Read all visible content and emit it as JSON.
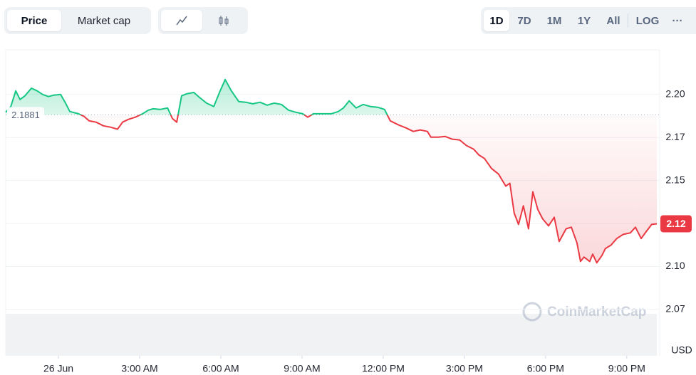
{
  "controls": {
    "tabs": [
      "Price",
      "Market cap"
    ],
    "ranges": [
      "1D",
      "7D",
      "1M",
      "1Y",
      "All"
    ],
    "log": "LOG",
    "more": "···"
  },
  "chart_data": {
    "type": "line",
    "currency": "USD",
    "watermark": "CoinMarketCap",
    "baseline": 2.1881,
    "current_price_label": "2.12",
    "colors": {
      "up": "#16c784",
      "down": "#ea3943"
    },
    "grid": true,
    "xlim": [
      -1.95,
      22.11
    ],
    "xticks": [
      {
        "value": 0,
        "label": "26 Jun"
      },
      {
        "value": 3,
        "label": "3:00 AM"
      },
      {
        "value": 6,
        "label": "6:00 AM"
      },
      {
        "value": 9,
        "label": "9:00 AM"
      },
      {
        "value": 12,
        "label": "12:00 PM"
      },
      {
        "value": 15,
        "label": "3:00 PM"
      },
      {
        "value": 18,
        "label": "6:00 PM"
      },
      {
        "value": 21,
        "label": "9:00 PM"
      }
    ],
    "ylim": [
      2.048,
      2.226
    ],
    "yticks": [
      {
        "value": 2.2,
        "label": "2.20"
      },
      {
        "value": 2.175,
        "label": "2.17"
      },
      2.15,
      {
        "value": 2.125,
        "label": "2.12"
      },
      {
        "value": 2.1,
        "label": "2.10"
      },
      {
        "value": 2.075,
        "label": "2.07"
      }
    ],
    "x": [
      -1.95,
      -1.76,
      -1.58,
      -1.42,
      -1.24,
      -1.0,
      -0.79,
      -0.58,
      -0.37,
      -0.18,
      0.08,
      0.26,
      0.42,
      0.74,
      0.95,
      1.13,
      1.39,
      1.66,
      1.92,
      2.18,
      2.37,
      2.58,
      2.84,
      3.11,
      3.32,
      3.5,
      3.76,
      4.03,
      4.21,
      4.37,
      4.55,
      4.74,
      5.0,
      5.21,
      5.47,
      5.74,
      5.95,
      6.16,
      6.39,
      6.66,
      6.92,
      7.18,
      7.45,
      7.71,
      7.97,
      8.24,
      8.5,
      8.76,
      9.03,
      9.21,
      9.42,
      9.82,
      10.08,
      10.34,
      10.53,
      10.74,
      11.0,
      11.26,
      11.53,
      11.79,
      12.05,
      12.26,
      12.58,
      12.84,
      13.11,
      13.37,
      13.63,
      13.76,
      14.03,
      14.29,
      14.55,
      14.82,
      15.08,
      15.34,
      15.53,
      15.74,
      16.0,
      16.26,
      16.53,
      16.68,
      16.84,
      17.0,
      17.18,
      17.37,
      17.53,
      17.71,
      17.89,
      18.11,
      18.32,
      18.5,
      18.76,
      18.95,
      19.16,
      19.29,
      19.42,
      19.63,
      19.74,
      19.89,
      20.08,
      20.21,
      20.42,
      20.63,
      20.87,
      21.13,
      21.32,
      21.53,
      21.74,
      21.92,
      22.11
    ],
    "values": [
      2.1897,
      2.193,
      2.2021,
      2.1971,
      2.1992,
      2.2037,
      2.2021,
      2.2,
      2.1988,
      2.1996,
      2.2,
      2.195,
      2.1901,
      2.1888,
      2.1872,
      2.1847,
      2.1839,
      2.1818,
      2.181,
      2.1798,
      2.1839,
      2.1855,
      2.1868,
      2.1888,
      2.1909,
      2.1917,
      2.1913,
      2.1922,
      2.186,
      2.1839,
      2.1992,
      2.2004,
      2.2012,
      2.1983,
      2.195,
      2.193,
      2.2012,
      2.2087,
      2.2021,
      2.1959,
      2.1955,
      2.1946,
      2.1955,
      2.1938,
      2.195,
      2.1942,
      2.1909,
      2.1897,
      2.1888,
      2.1868,
      2.1888,
      2.1888,
      2.1888,
      2.1901,
      2.1922,
      2.1963,
      2.1922,
      2.1942,
      2.193,
      2.1926,
      2.1913,
      2.1847,
      2.1822,
      2.1806,
      2.1785,
      2.1794,
      2.1785,
      2.1752,
      2.1752,
      2.1756,
      2.174,
      2.1736,
      2.1703,
      2.1682,
      2.1649,
      2.1628,
      2.157,
      2.1537,
      2.1467,
      2.1484,
      2.131,
      2.1244,
      2.1352,
      2.1219,
      2.1434,
      2.1331,
      2.1277,
      2.1236,
      2.1286,
      2.1145,
      2.1219,
      2.1228,
      2.1137,
      2.1029,
      2.1054,
      2.1029,
      2.1071,
      2.1021,
      2.1063,
      2.1104,
      2.1124,
      2.1162,
      2.1186,
      2.1195,
      2.1228,
      2.1162,
      2.1207,
      2.1244,
      2.1248
    ]
  }
}
